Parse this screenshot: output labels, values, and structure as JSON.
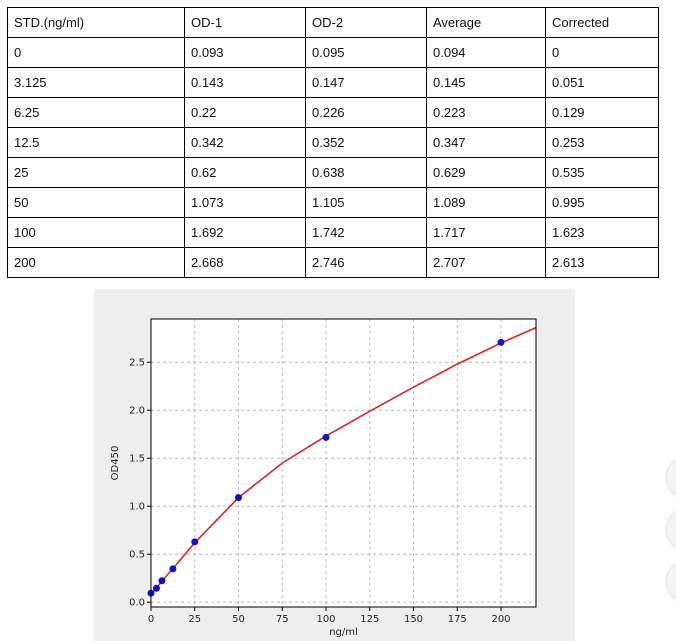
{
  "table": {
    "headers": [
      "STD.(ng/ml)",
      "OD-1",
      "OD-2",
      "Average",
      "Corrected"
    ],
    "rows": [
      [
        "0",
        "0.093",
        "0.095",
        "0.094",
        "0"
      ],
      [
        "3.125",
        "0.143",
        "0.147",
        "0.145",
        "0.051"
      ],
      [
        "6.25",
        "0.22",
        "0.226",
        "0.223",
        "0.129"
      ],
      [
        "12.5",
        "0.342",
        "0.352",
        "0.347",
        "0.253"
      ],
      [
        "25",
        "0.62",
        "0.638",
        "0.629",
        "0.535"
      ],
      [
        "50",
        "1.073",
        "1.105",
        "1.089",
        "0.995"
      ],
      [
        "100",
        "1.692",
        "1.742",
        "1.717",
        "1.623"
      ],
      [
        "200",
        "2.668",
        "2.746",
        "2.707",
        "2.613"
      ]
    ]
  },
  "chart_data": {
    "type": "scatter",
    "xlabel": "ng/ml",
    "ylabel": "OD450",
    "xlim": [
      0,
      220
    ],
    "ylim": [
      -0.05,
      2.95
    ],
    "x_ticks": [
      0,
      25,
      50,
      75,
      100,
      125,
      150,
      175,
      200
    ],
    "y_ticks": [
      0.0,
      0.5,
      1.0,
      1.5,
      2.0,
      2.5
    ],
    "y_tick_labels": [
      "0.0",
      "0.5",
      "1.0",
      "1.5",
      "2.0",
      "2.5"
    ],
    "grid": true,
    "points": {
      "x": [
        0,
        3.125,
        6.25,
        12.5,
        25,
        50,
        100,
        200
      ],
      "y": [
        0.094,
        0.145,
        0.223,
        0.347,
        0.629,
        1.089,
        1.717,
        2.707
      ]
    },
    "fit_curve": {
      "x": [
        0,
        3.125,
        6.25,
        12.5,
        25,
        50,
        75,
        100,
        125,
        150,
        175,
        200,
        220
      ],
      "y": [
        0.08,
        0.15,
        0.22,
        0.35,
        0.62,
        1.09,
        1.45,
        1.73,
        1.99,
        2.24,
        2.48,
        2.7,
        2.86
      ]
    },
    "colors": {
      "points": "#1010cc",
      "curve": "#d62728",
      "grid": "#b0b0b0",
      "plot_bg": "#ffffff",
      "panel_bg": "#eeeeee"
    }
  }
}
